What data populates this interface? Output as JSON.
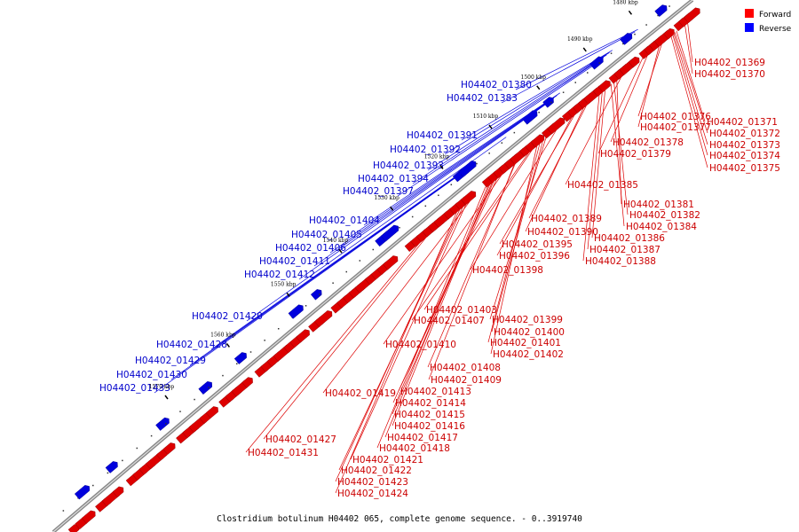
{
  "legend": [
    {
      "label": "Forward",
      "color": "#ff0000"
    },
    {
      "label": "Reverse",
      "color": "#0000ff"
    }
  ],
  "caption": "Clostridium botulinum H04402 065, complete genome sequence. - 0..3919740",
  "ticks": [
    "1480 kbp",
    "1490 kbp",
    "1500 kbp",
    "1510 kbp",
    "1520 kbp",
    "1530 kbp",
    "1540 kbp",
    "1550 kbp",
    "1560 kbp",
    "1570 kbp"
  ],
  "forward_labels": [
    "H04402_01369",
    "H04402_01370",
    "H04402_01371",
    "H04402_01372",
    "H04402_01373",
    "H04402_01374",
    "H04402_01375",
    "H04402_01376",
    "H04402_01377",
    "H04402_01378",
    "H04402_01379",
    "H04402_01385",
    "H04402_01381",
    "H04402_01382",
    "H04402_01384",
    "H04402_01386",
    "H04402_01387",
    "H04402_01388",
    "H04402_01389",
    "H04402_01390",
    "H04402_01395",
    "H04402_01396",
    "H04402_01398",
    "H04402_01403",
    "H04402_01407",
    "H04402_01399",
    "H04402_01400",
    "H04402_01401",
    "H04402_01402",
    "H04402_01410",
    "H04402_01408",
    "H04402_01409",
    "H04402_01413",
    "H04402_01419",
    "H04402_01414",
    "H04402_01415",
    "H04402_01416",
    "H04402_01417",
    "H04402_01418",
    "H04402_01427",
    "H04402_01431",
    "H04402_01421",
    "H04402_01422",
    "H04402_01423",
    "H04402_01424"
  ],
  "reverse_labels": [
    "H04402_01380",
    "H04402_01383",
    "H04402_01391",
    "H04402_01392",
    "H04402_01393",
    "H04402_01394",
    "H04402_01397",
    "H04402_01404",
    "H04402_01405",
    "H04402_01406",
    "H04402_01411",
    "H04402_01412",
    "H04402_01420",
    "H04402_01428",
    "H04402_01429",
    "H04402_01430",
    "H04402_01433"
  ]
}
